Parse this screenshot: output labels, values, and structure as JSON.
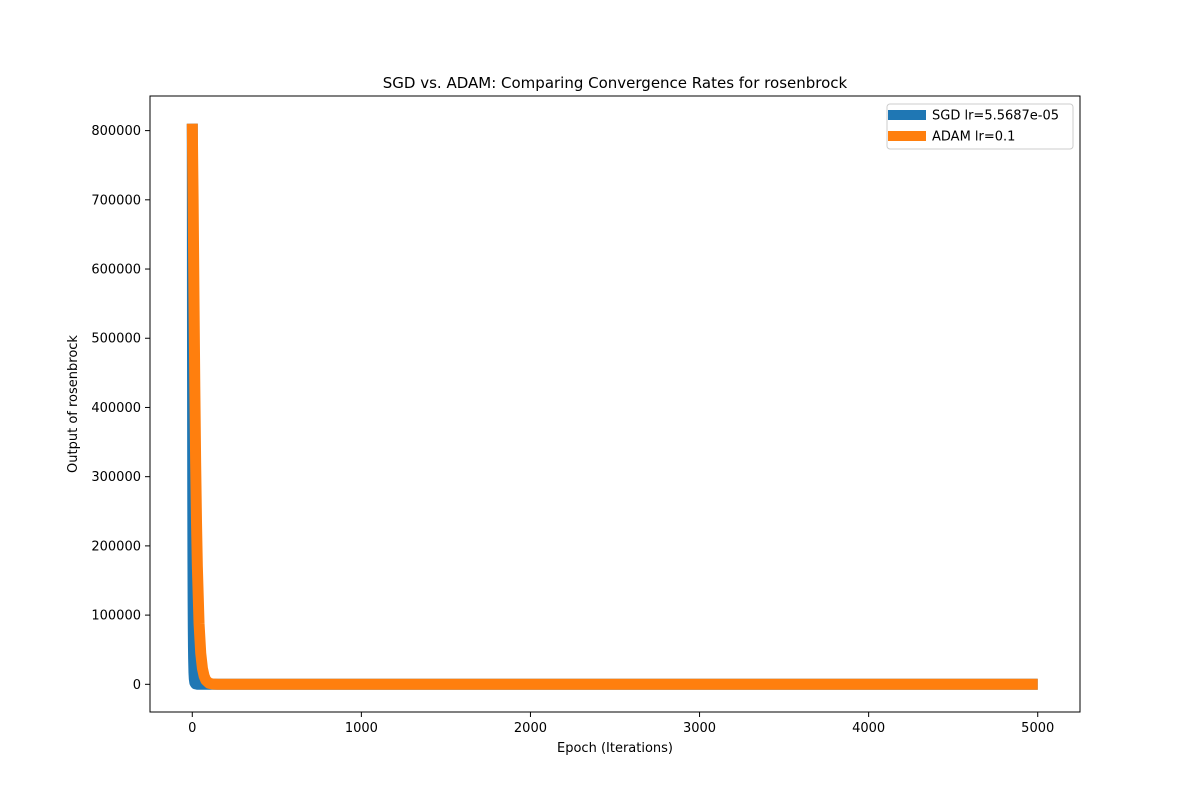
{
  "chart_data": {
    "type": "line",
    "title": "SGD vs. ADAM: Comparing Convergence Rates for rosenbrock",
    "xlabel": "Epoch (Iterations)",
    "ylabel": "Output of rosenbrock",
    "xlim": [
      -250,
      5250
    ],
    "ylim": [
      -40000,
      850000
    ],
    "xticks": [
      0,
      1000,
      2000,
      3000,
      4000,
      5000
    ],
    "yticks": [
      0,
      100000,
      200000,
      300000,
      400000,
      500000,
      600000,
      700000,
      800000
    ],
    "grid": false,
    "legend_position": "top-right",
    "series": [
      {
        "name": "SGD lr=5.5687e-05",
        "color": "#1f77b4",
        "x": [
          0,
          1,
          2,
          3,
          4,
          5,
          6,
          7,
          8,
          10,
          12,
          15,
          20,
          30,
          50,
          100,
          500,
          1000,
          2000,
          3000,
          4000,
          5000
        ],
        "y": [
          810000,
          560000,
          380000,
          260000,
          175000,
          118000,
          80000,
          54000,
          37000,
          17000,
          8000,
          2500,
          600,
          150,
          60,
          20,
          5,
          3,
          2,
          1,
          1,
          1
        ]
      },
      {
        "name": "ADAM lr=0.1",
        "color": "#ff7f0e",
        "x": [
          0,
          5,
          10,
          15,
          20,
          25,
          30,
          40,
          50,
          60,
          70,
          80,
          100,
          120,
          150,
          200,
          300,
          500,
          1000,
          2000,
          3000,
          4000,
          5000
        ],
        "y": [
          810000,
          700000,
          560000,
          430000,
          320000,
          235000,
          170000,
          88000,
          45000,
          23000,
          12000,
          6000,
          1500,
          400,
          80,
          10,
          2,
          1,
          0,
          0,
          0,
          0,
          0
        ]
      }
    ]
  }
}
